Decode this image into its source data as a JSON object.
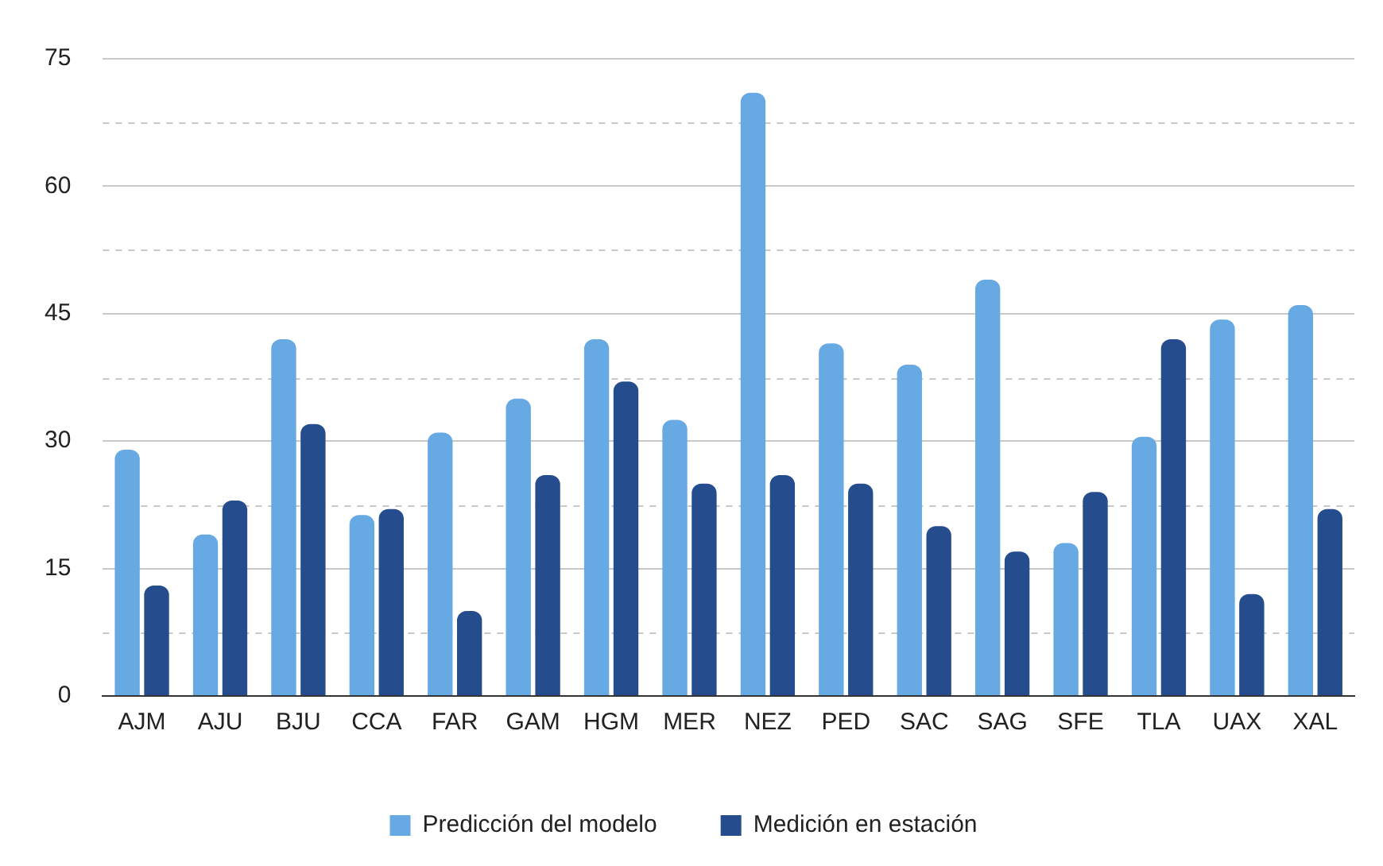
{
  "chart_data": {
    "type": "bar",
    "categories": [
      "AJM",
      "AJU",
      "BJU",
      "CCA",
      "FAR",
      "GAM",
      "HGM",
      "MER",
      "NEZ",
      "PED",
      "SAC",
      "SAG",
      "SFE",
      "TLA",
      "UAX",
      "XAL"
    ],
    "series": [
      {
        "name": "Predicción del modelo",
        "color": "#67a9e3",
        "values": [
          29,
          19,
          42,
          21.3,
          31,
          35,
          42,
          32.5,
          71,
          41.5,
          39,
          49,
          18,
          30.5,
          44.3,
          46
        ]
      },
      {
        "name": "Medición en estación",
        "color": "#254d8e",
        "values": [
          13,
          23,
          32,
          22,
          10,
          26,
          37,
          25,
          26,
          25,
          20,
          17,
          24,
          42,
          12,
          22
        ]
      }
    ],
    "ylim": [
      0,
      75
    ],
    "yticks": [
      0,
      {
        "value": 7.5,
        "label": null
      },
      15,
      {
        "value": 22.5,
        "label": null
      },
      30,
      {
        "value": 37.5,
        "label": null
      },
      45,
      {
        "value": 52.5,
        "label": null
      },
      60,
      {
        "value": 67.5,
        "label": null
      },
      75
    ],
    "grid": "y",
    "legend": "bottom"
  }
}
